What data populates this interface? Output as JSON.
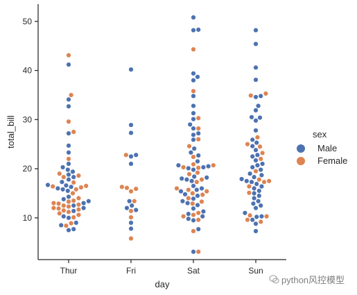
{
  "chart_data": {
    "type": "scatter",
    "subtype": "swarm",
    "xlabel": "day",
    "ylabel": "total_bill",
    "categories": [
      "Thur",
      "Fri",
      "Sat",
      "Sun"
    ],
    "yticks": [
      10,
      20,
      30,
      40,
      50
    ],
    "ylim": [
      1.5,
      53.5
    ],
    "grid": false,
    "legend": {
      "title": "sex",
      "placement": "right",
      "entries": [
        {
          "name": "Male",
          "color": "#4c72b0"
        },
        {
          "name": "Female",
          "color": "#dd8452"
        }
      ]
    },
    "series": [
      {
        "name": "Male",
        "color": "#4c72b0",
        "points": [
          [
            "Thur",
            41.2
          ],
          [
            "Thur",
            34.1
          ],
          [
            "Thur",
            32.7
          ],
          [
            "Thur",
            27.2
          ],
          [
            "Thur",
            24.7
          ],
          [
            "Thur",
            23.3
          ],
          [
            "Thur",
            21.0
          ],
          [
            "Thur",
            20.3
          ],
          [
            "Thur",
            19.8
          ],
          [
            "Thur",
            19.4
          ],
          [
            "Thur",
            18.8
          ],
          [
            "Thur",
            18.3
          ],
          [
            "Thur",
            17.8
          ],
          [
            "Thur",
            17.3
          ],
          [
            "Thur",
            16.7
          ],
          [
            "Thur",
            16.6
          ],
          [
            "Thur",
            16.3
          ],
          [
            "Thur",
            16.0
          ],
          [
            "Thur",
            15.8
          ],
          [
            "Thur",
            15.5
          ],
          [
            "Thur",
            14.3
          ],
          [
            "Thur",
            13.8
          ],
          [
            "Thur",
            13.4
          ],
          [
            "Thur",
            13.0
          ],
          [
            "Thur",
            12.5
          ],
          [
            "Thur",
            12.0
          ],
          [
            "Thur",
            11.4
          ],
          [
            "Thur",
            10.3
          ],
          [
            "Thur",
            10.0
          ],
          [
            "Thur",
            9.0
          ],
          [
            "Thur",
            8.5
          ],
          [
            "Thur",
            7.7
          ],
          [
            "Thur",
            7.5
          ],
          [
            "Fri",
            40.2
          ],
          [
            "Fri",
            28.9
          ],
          [
            "Fri",
            27.3
          ],
          [
            "Fri",
            22.8
          ],
          [
            "Fri",
            22.5
          ],
          [
            "Fri",
            21.0
          ],
          [
            "Fri",
            13.4
          ],
          [
            "Fri",
            12.5
          ],
          [
            "Fri",
            12.0
          ],
          [
            "Fri",
            11.6
          ],
          [
            "Fri",
            9.0
          ],
          [
            "Fri",
            7.8
          ],
          [
            "Sat",
            50.8
          ],
          [
            "Sat",
            48.3
          ],
          [
            "Sat",
            48.2
          ],
          [
            "Sat",
            39.4
          ],
          [
            "Sat",
            38.7
          ],
          [
            "Sat",
            38.0
          ],
          [
            "Sat",
            34.8
          ],
          [
            "Sat",
            32.8
          ],
          [
            "Sat",
            31.3
          ],
          [
            "Sat",
            30.1
          ],
          [
            "Sat",
            29.0
          ],
          [
            "Sat",
            28.2
          ],
          [
            "Sat",
            27.2
          ],
          [
            "Sat",
            26.9
          ],
          [
            "Sat",
            25.9
          ],
          [
            "Sat",
            24.1
          ],
          [
            "Sat",
            23.3
          ],
          [
            "Sat",
            22.7
          ],
          [
            "Sat",
            21.5
          ],
          [
            "Sat",
            20.7
          ],
          [
            "Sat",
            20.5
          ],
          [
            "Sat",
            20.3
          ],
          [
            "Sat",
            20.1
          ],
          [
            "Sat",
            19.8
          ],
          [
            "Sat",
            18.4
          ],
          [
            "Sat",
            18.2
          ],
          [
            "Sat",
            18.0
          ],
          [
            "Sat",
            17.8
          ],
          [
            "Sat",
            17.5
          ],
          [
            "Sat",
            16.5
          ],
          [
            "Sat",
            16.0
          ],
          [
            "Sat",
            15.7
          ],
          [
            "Sat",
            15.4
          ],
          [
            "Sat",
            14.8
          ],
          [
            "Sat",
            14.5
          ],
          [
            "Sat",
            13.9
          ],
          [
            "Sat",
            13.4
          ],
          [
            "Sat",
            13.0
          ],
          [
            "Sat",
            12.6
          ],
          [
            "Sat",
            11.9
          ],
          [
            "Sat",
            11.3
          ],
          [
            "Sat",
            10.8
          ],
          [
            "Sat",
            10.3
          ],
          [
            "Sat",
            9.8
          ],
          [
            "Sat",
            9.5
          ],
          [
            "Sat",
            7.7
          ],
          [
            "Sat",
            3.1
          ],
          [
            "Sun",
            48.2
          ],
          [
            "Sun",
            45.4
          ],
          [
            "Sun",
            40.6
          ],
          [
            "Sun",
            38.1
          ],
          [
            "Sun",
            34.8
          ],
          [
            "Sun",
            34.6
          ],
          [
            "Sun",
            32.8
          ],
          [
            "Sun",
            31.9
          ],
          [
            "Sun",
            30.5
          ],
          [
            "Sun",
            30.4
          ],
          [
            "Sun",
            29.8
          ],
          [
            "Sun",
            27.8
          ],
          [
            "Sun",
            25.9
          ],
          [
            "Sun",
            25.3
          ],
          [
            "Sun",
            24.6
          ],
          [
            "Sun",
            23.8
          ],
          [
            "Sun",
            22.8
          ],
          [
            "Sun",
            22.5
          ],
          [
            "Sun",
            21.7
          ],
          [
            "Sun",
            21.0
          ],
          [
            "Sun",
            20.7
          ],
          [
            "Sun",
            20.3
          ],
          [
            "Sun",
            19.8
          ],
          [
            "Sun",
            19.0
          ],
          [
            "Sun",
            18.7
          ],
          [
            "Sun",
            18.3
          ],
          [
            "Sun",
            17.9
          ],
          [
            "Sun",
            17.5
          ],
          [
            "Sun",
            17.3
          ],
          [
            "Sun",
            16.9
          ],
          [
            "Sun",
            16.4
          ],
          [
            "Sun",
            16.0
          ],
          [
            "Sun",
            15.5
          ],
          [
            "Sun",
            15.0
          ],
          [
            "Sun",
            14.5
          ],
          [
            "Sun",
            14.0
          ],
          [
            "Sun",
            13.4
          ],
          [
            "Sun",
            12.9
          ],
          [
            "Sun",
            12.5
          ],
          [
            "Sun",
            12.0
          ],
          [
            "Sun",
            11.0
          ],
          [
            "Sun",
            10.3
          ],
          [
            "Sun",
            10.2
          ],
          [
            "Sun",
            9.6
          ],
          [
            "Sun",
            8.8
          ],
          [
            "Sun",
            7.3
          ]
        ]
      },
      {
        "name": "Female",
        "color": "#dd8452",
        "points": [
          [
            "Thur",
            43.1
          ],
          [
            "Thur",
            35.0
          ],
          [
            "Thur",
            29.6
          ],
          [
            "Thur",
            27.5
          ],
          [
            "Thur",
            22.0
          ],
          [
            "Thur",
            19.0
          ],
          [
            "Thur",
            18.6
          ],
          [
            "Thur",
            18.3
          ],
          [
            "Thur",
            17.2
          ],
          [
            "Thur",
            16.5
          ],
          [
            "Thur",
            16.4
          ],
          [
            "Thur",
            16.2
          ],
          [
            "Thur",
            15.8
          ],
          [
            "Thur",
            15.0
          ],
          [
            "Thur",
            14.0
          ],
          [
            "Thur",
            13.5
          ],
          [
            "Thur",
            13.3
          ],
          [
            "Thur",
            13.0
          ],
          [
            "Thur",
            12.9
          ],
          [
            "Thur",
            12.7
          ],
          [
            "Thur",
            12.5
          ],
          [
            "Thur",
            12.3
          ],
          [
            "Thur",
            12.0
          ],
          [
            "Thur",
            11.9
          ],
          [
            "Thur",
            11.7
          ],
          [
            "Thur",
            11.5
          ],
          [
            "Thur",
            11.2
          ],
          [
            "Thur",
            10.9
          ],
          [
            "Thur",
            10.6
          ],
          [
            "Thur",
            10.1
          ],
          [
            "Thur",
            8.9
          ],
          [
            "Thur",
            8.4
          ],
          [
            "Fri",
            22.8
          ],
          [
            "Fri",
            16.3
          ],
          [
            "Fri",
            16.1
          ],
          [
            "Fri",
            15.9
          ],
          [
            "Fri",
            15.4
          ],
          [
            "Fri",
            13.4
          ],
          [
            "Fri",
            11.4
          ],
          [
            "Fri",
            10.1
          ],
          [
            "Fri",
            5.8
          ],
          [
            "Sat",
            44.3
          ],
          [
            "Sat",
            35.8
          ],
          [
            "Sat",
            30.3
          ],
          [
            "Sat",
            28.2
          ],
          [
            "Sat",
            26.0
          ],
          [
            "Sat",
            24.6
          ],
          [
            "Sat",
            22.4
          ],
          [
            "Sat",
            20.9
          ],
          [
            "Sat",
            20.7
          ],
          [
            "Sat",
            20.3
          ],
          [
            "Sat",
            20.2
          ],
          [
            "Sat",
            19.2
          ],
          [
            "Sat",
            18.9
          ],
          [
            "Sat",
            17.8
          ],
          [
            "Sat",
            17.3
          ],
          [
            "Sat",
            16.0
          ],
          [
            "Sat",
            15.7
          ],
          [
            "Sat",
            15.4
          ],
          [
            "Sat",
            15.0
          ],
          [
            "Sat",
            14.7
          ],
          [
            "Sat",
            14.0
          ],
          [
            "Sat",
            13.3
          ],
          [
            "Sat",
            12.9
          ],
          [
            "Sat",
            11.0
          ],
          [
            "Sat",
            10.6
          ],
          [
            "Sat",
            10.3
          ],
          [
            "Sat",
            9.6
          ],
          [
            "Sat",
            7.3
          ],
          [
            "Sat",
            3.1
          ],
          [
            "Sun",
            35.3
          ],
          [
            "Sun",
            34.9
          ],
          [
            "Sun",
            26.4
          ],
          [
            "Sun",
            25.0
          ],
          [
            "Sun",
            24.5
          ],
          [
            "Sun",
            23.2
          ],
          [
            "Sun",
            22.0
          ],
          [
            "Sun",
            19.5
          ],
          [
            "Sun",
            17.8
          ],
          [
            "Sun",
            17.5
          ],
          [
            "Sun",
            17.3
          ],
          [
            "Sun",
            16.4
          ],
          [
            "Sun",
            15.1
          ],
          [
            "Sun",
            10.5
          ],
          [
            "Sun",
            10.3
          ],
          [
            "Sun",
            9.6
          ],
          [
            "Sun",
            9.2
          ]
        ]
      }
    ]
  },
  "watermark": {
    "text": "python风控模型",
    "icon": "wechat-icon"
  }
}
